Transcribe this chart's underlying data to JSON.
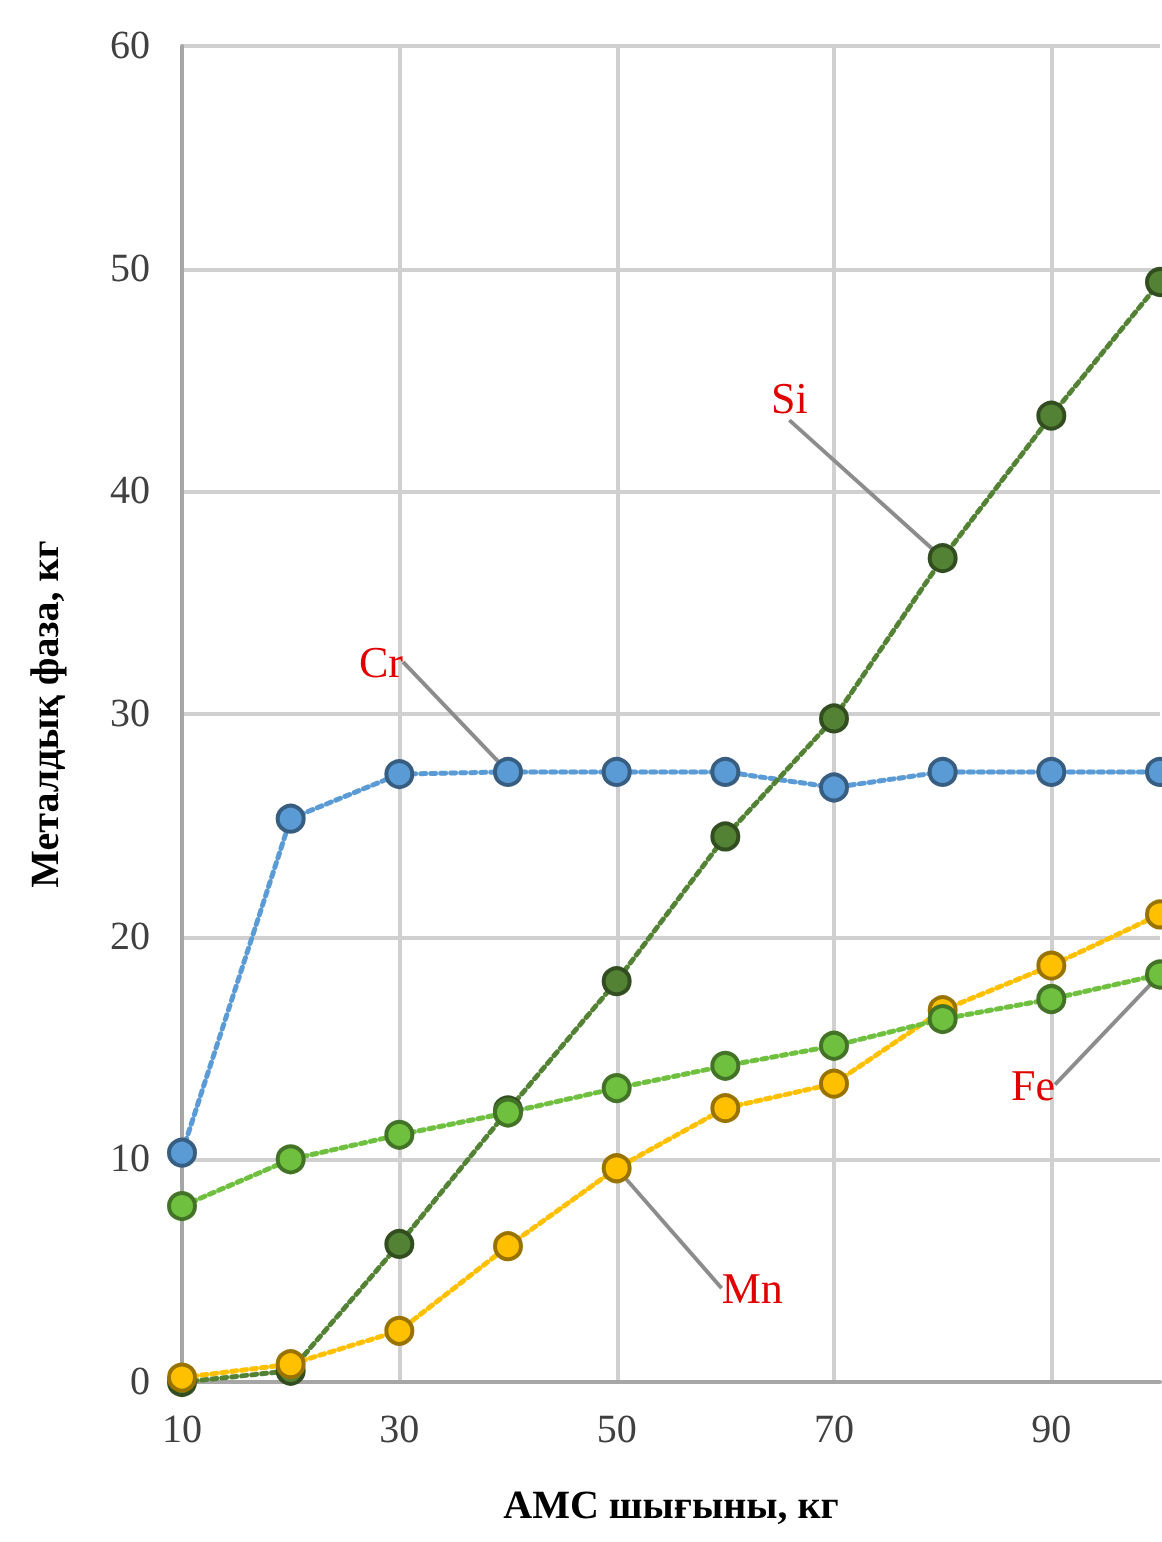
{
  "chart_data": {
    "type": "line",
    "xlabel": "АМС шығыны, кг",
    "ylabel": "Металдық фаза, кг",
    "x": [
      10,
      20,
      30,
      40,
      50,
      60,
      70,
      80,
      90,
      100
    ],
    "xlim": [
      10,
      100
    ],
    "xticks": [
      10,
      30,
      50,
      70,
      90
    ],
    "ylim": [
      0,
      60
    ],
    "yticks": [
      0,
      10,
      20,
      30,
      40,
      50,
      60
    ],
    "grid": true,
    "marker": "circle",
    "line_style": "dotted",
    "legend": false,
    "series": [
      {
        "name": "Cr",
        "color": "#5b9bd5",
        "values": [
          10.3,
          25.3,
          27.3,
          27.4,
          27.4,
          27.4,
          26.7,
          27.4,
          27.4,
          27.4
        ]
      },
      {
        "name": "Si",
        "color": "#548235",
        "values": [
          0,
          0.5,
          6.2,
          12.2,
          18.0,
          24.5,
          29.8,
          37.0,
          43.4,
          49.4
        ]
      },
      {
        "name": "Mn",
        "color": "#ffc000",
        "values": [
          0.2,
          0.8,
          2.3,
          6.1,
          9.6,
          12.3,
          13.4,
          16.7,
          18.7,
          21.0
        ]
      },
      {
        "name": "Fe",
        "color": "#70c040",
        "values": [
          7.9,
          10.0,
          11.1,
          12.1,
          13.2,
          14.2,
          15.1,
          16.3,
          17.2,
          18.3
        ]
      }
    ]
  }
}
